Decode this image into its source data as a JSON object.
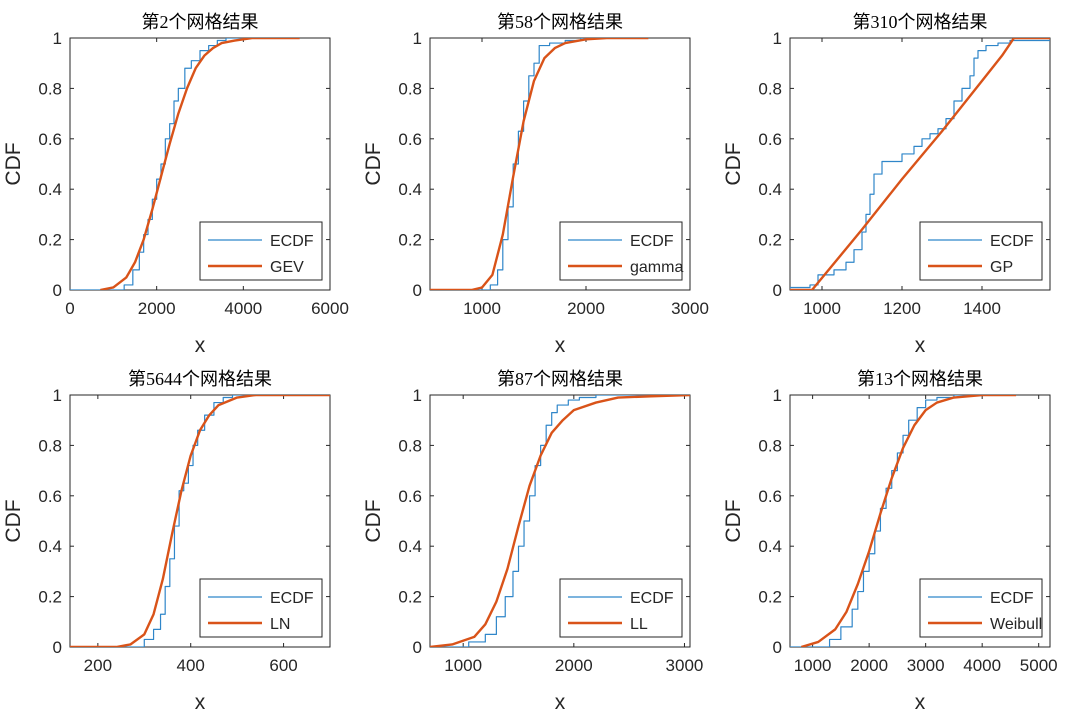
{
  "figure": {
    "background": "#ffffff"
  },
  "colors": {
    "ecdf": "#2f86c9",
    "fit": "#d95319",
    "axis": "#262626"
  },
  "chart_data": [
    {
      "type": "line",
      "title": "第2个网格结果",
      "xlabel": "x",
      "ylabel": "CDF",
      "xlim": [
        0,
        6000
      ],
      "ylim": [
        0,
        1
      ],
      "xticks": [
        0,
        2000,
        4000,
        6000
      ],
      "xtick_labels": [
        "0",
        "2000",
        "4000",
        "6000"
      ],
      "yticks": [
        0,
        0.2,
        0.4,
        0.6,
        0.8,
        1
      ],
      "ytick_labels": [
        "0",
        "0.2",
        "0.4",
        "0.6",
        "0.8",
        "1"
      ],
      "legend": {
        "position": "bottom-right",
        "entries": [
          "ECDF",
          "GEV"
        ]
      },
      "series": [
        {
          "name": "ECDF",
          "kind": "step",
          "x": [
            1250,
            1450,
            1600,
            1700,
            1800,
            1900,
            2000,
            2100,
            2200,
            2300,
            2400,
            2500,
            2650,
            2800,
            3000,
            3200,
            3400,
            3600,
            3800,
            5300
          ],
          "y": [
            0.02,
            0.08,
            0.15,
            0.22,
            0.28,
            0.36,
            0.44,
            0.5,
            0.6,
            0.66,
            0.75,
            0.8,
            0.88,
            0.91,
            0.95,
            0.97,
            0.99,
            1,
            1,
            1
          ]
        },
        {
          "name": "GEV",
          "kind": "line",
          "x": [
            700,
            1000,
            1300,
            1500,
            1700,
            1900,
            2100,
            2300,
            2500,
            2700,
            2900,
            3100,
            3300,
            3500,
            3800,
            4200,
            5300
          ],
          "y": [
            0,
            0.01,
            0.05,
            0.11,
            0.2,
            0.32,
            0.45,
            0.58,
            0.7,
            0.8,
            0.88,
            0.93,
            0.96,
            0.98,
            0.99,
            1,
            1
          ]
        }
      ]
    },
    {
      "type": "line",
      "title": "第58个网格结果",
      "xlabel": "x",
      "ylabel": "CDF",
      "xlim": [
        500,
        3000
      ],
      "ylim": [
        0,
        1
      ],
      "xticks": [
        1000,
        2000,
        3000
      ],
      "xtick_labels": [
        "1000",
        "2000",
        "3000"
      ],
      "yticks": [
        0,
        0.2,
        0.4,
        0.6,
        0.8,
        1
      ],
      "ytick_labels": [
        "0",
        "0.2",
        "0.4",
        "0.6",
        "0.8",
        "1"
      ],
      "legend": {
        "position": "bottom-right",
        "entries": [
          "ECDF",
          "gamma"
        ]
      },
      "series": [
        {
          "name": "ECDF",
          "kind": "step",
          "x": [
            1080,
            1150,
            1200,
            1250,
            1300,
            1350,
            1400,
            1450,
            1500,
            1550,
            1650,
            1800,
            1950,
            2600
          ],
          "y": [
            0.02,
            0.08,
            0.2,
            0.33,
            0.5,
            0.63,
            0.75,
            0.85,
            0.9,
            0.97,
            0.98,
            0.99,
            1,
            1
          ]
        },
        {
          "name": "gamma",
          "kind": "line",
          "x": [
            500,
            900,
            1000,
            1100,
            1200,
            1300,
            1400,
            1500,
            1600,
            1700,
            1800,
            2000,
            2200,
            2600
          ],
          "y": [
            0,
            0,
            0.01,
            0.06,
            0.22,
            0.45,
            0.67,
            0.83,
            0.92,
            0.96,
            0.98,
            0.995,
            1,
            1
          ]
        }
      ]
    },
    {
      "type": "line",
      "title": "第310个网格结果",
      "xlabel": "x",
      "ylabel": "CDF",
      "xlim": [
        920,
        1570
      ],
      "ylim": [
        0,
        1
      ],
      "xticks": [
        1000,
        1200,
        1400
      ],
      "xtick_labels": [
        "1000",
        "1200",
        "1400"
      ],
      "yticks": [
        0,
        0.2,
        0.4,
        0.6,
        0.8,
        1
      ],
      "ytick_labels": [
        "0",
        "0.2",
        "0.4",
        "0.6",
        "0.8",
        "1"
      ],
      "legend": {
        "position": "bottom-right",
        "entries": [
          "ECDF",
          "GP"
        ]
      },
      "series": [
        {
          "name": "ECDF",
          "kind": "step",
          "x": [
            920,
            970,
            990,
            1030,
            1060,
            1080,
            1100,
            1110,
            1120,
            1130,
            1150,
            1170,
            1200,
            1230,
            1250,
            1270,
            1290,
            1310,
            1330,
            1350,
            1370,
            1380,
            1390,
            1410,
            1440,
            1470,
            1500,
            1570
          ],
          "y": [
            0.01,
            0.02,
            0.06,
            0.08,
            0.11,
            0.16,
            0.23,
            0.3,
            0.38,
            0.46,
            0.51,
            0.51,
            0.54,
            0.57,
            0.6,
            0.62,
            0.64,
            0.68,
            0.75,
            0.8,
            0.85,
            0.92,
            0.95,
            0.97,
            0.98,
            0.99,
            0.99,
            0.99
          ]
        },
        {
          "name": "GP",
          "kind": "line",
          "x": [
            920,
            975,
            1100,
            1200,
            1300,
            1400,
            1450,
            1480,
            1570
          ],
          "y": [
            0,
            0,
            0.24,
            0.44,
            0.63,
            0.83,
            0.93,
            1,
            1
          ]
        }
      ]
    },
    {
      "type": "line",
      "title": "第5644个网格结果",
      "xlabel": "x",
      "ylabel": "CDF",
      "xlim": [
        140,
        700
      ],
      "ylim": [
        0,
        1
      ],
      "xticks": [
        200,
        400,
        600
      ],
      "xtick_labels": [
        "200",
        "400",
        "600"
      ],
      "yticks": [
        0,
        0.2,
        0.4,
        0.6,
        0.8,
        1
      ],
      "ytick_labels": [
        "0",
        "0.2",
        "0.4",
        "0.6",
        "0.8",
        "1"
      ],
      "legend": {
        "position": "bottom-right",
        "entries": [
          "ECDF",
          "LN"
        ]
      },
      "series": [
        {
          "name": "ECDF",
          "kind": "step",
          "x": [
            300,
            320,
            335,
            345,
            355,
            365,
            375,
            385,
            395,
            405,
            415,
            430,
            450,
            470,
            490,
            700
          ],
          "y": [
            0.03,
            0.07,
            0.13,
            0.24,
            0.35,
            0.48,
            0.62,
            0.65,
            0.72,
            0.8,
            0.86,
            0.92,
            0.97,
            0.99,
            1,
            1
          ]
        },
        {
          "name": "LN",
          "kind": "line",
          "x": [
            140,
            240,
            270,
            300,
            320,
            340,
            360,
            380,
            400,
            420,
            440,
            460,
            500,
            540,
            600,
            700
          ],
          "y": [
            0,
            0,
            0.01,
            0.05,
            0.13,
            0.27,
            0.45,
            0.62,
            0.76,
            0.86,
            0.92,
            0.96,
            0.99,
            1,
            1,
            1
          ]
        }
      ]
    },
    {
      "type": "line",
      "title": "第87个网格结果",
      "xlabel": "x",
      "ylabel": "CDF",
      "xlim": [
        700,
        3050
      ],
      "ylim": [
        0,
        1
      ],
      "xticks": [
        1000,
        2000,
        3000
      ],
      "xtick_labels": [
        "1000",
        "2000",
        "3000"
      ],
      "yticks": [
        0,
        0.2,
        0.4,
        0.6,
        0.8,
        1
      ],
      "ytick_labels": [
        "0",
        "0.2",
        "0.4",
        "0.6",
        "0.8",
        "1"
      ],
      "legend": {
        "position": "bottom-right",
        "entries": [
          "ECDF",
          "LL"
        ]
      },
      "series": [
        {
          "name": "ECDF",
          "kind": "step",
          "x": [
            1050,
            1200,
            1300,
            1380,
            1450,
            1500,
            1550,
            1600,
            1650,
            1700,
            1750,
            1800,
            1850,
            1950,
            2050,
            2200,
            2400,
            3050
          ],
          "y": [
            0.02,
            0.05,
            0.12,
            0.2,
            0.3,
            0.4,
            0.5,
            0.6,
            0.72,
            0.8,
            0.88,
            0.93,
            0.96,
            0.98,
            0.99,
            1,
            1,
            1
          ]
        },
        {
          "name": "LL",
          "kind": "line",
          "x": [
            700,
            900,
            1100,
            1200,
            1300,
            1400,
            1500,
            1600,
            1700,
            1800,
            1900,
            2000,
            2200,
            2400,
            2700,
            3050
          ],
          "y": [
            0,
            0.01,
            0.04,
            0.09,
            0.18,
            0.31,
            0.48,
            0.64,
            0.76,
            0.85,
            0.9,
            0.94,
            0.97,
            0.99,
            0.995,
            1
          ]
        }
      ]
    },
    {
      "type": "line",
      "title": "第13个网格结果",
      "xlabel": "x",
      "ylabel": "CDF",
      "xlim": [
        600,
        5200
      ],
      "ylim": [
        0,
        1
      ],
      "xticks": [
        1000,
        2000,
        3000,
        4000,
        5000
      ],
      "xtick_labels": [
        "1000",
        "2000",
        "3000",
        "4000",
        "5000"
      ],
      "yticks": [
        0,
        0.2,
        0.4,
        0.6,
        0.8,
        1
      ],
      "ytick_labels": [
        "0",
        "0.2",
        "0.4",
        "0.6",
        "0.8",
        "1"
      ],
      "legend": {
        "position": "bottom-right",
        "entries": [
          "ECDF",
          "Weibull"
        ]
      },
      "series": [
        {
          "name": "ECDF",
          "kind": "step",
          "x": [
            1300,
            1500,
            1700,
            1800,
            1900,
            2000,
            2100,
            2200,
            2300,
            2400,
            2500,
            2600,
            2700,
            2850,
            3000,
            3200,
            3500,
            4600
          ],
          "y": [
            0.03,
            0.08,
            0.15,
            0.22,
            0.3,
            0.37,
            0.46,
            0.55,
            0.63,
            0.7,
            0.77,
            0.84,
            0.9,
            0.95,
            0.98,
            0.99,
            1,
            1
          ]
        },
        {
          "name": "Weibull",
          "kind": "line",
          "x": [
            800,
            1100,
            1400,
            1600,
            1800,
            2000,
            2200,
            2400,
            2600,
            2800,
            3000,
            3200,
            3500,
            4000,
            4600
          ],
          "y": [
            0,
            0.02,
            0.07,
            0.14,
            0.25,
            0.38,
            0.53,
            0.67,
            0.79,
            0.88,
            0.94,
            0.97,
            0.99,
            1,
            1
          ]
        }
      ]
    }
  ]
}
